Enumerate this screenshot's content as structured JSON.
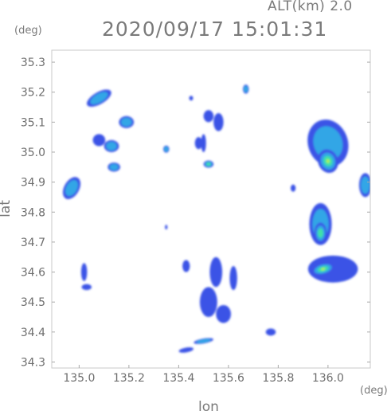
{
  "chart_data": {
    "type": "heatmap",
    "title": "2020/09/17 15:01:31",
    "altitude_label": "ALT(km) 2.0",
    "xlabel": "lon",
    "ylabel": "lat",
    "x_unit": "(deg)",
    "y_unit": "(deg)",
    "xlim": [
      134.89,
      136.17
    ],
    "ylim": [
      34.28,
      35.34
    ],
    "x_ticks": [
      "135.0",
      "135.2",
      "135.4",
      "135.6",
      "135.8",
      "136.0"
    ],
    "y_ticks": [
      "34.3",
      "34.4",
      "34.5",
      "34.6",
      "34.7",
      "34.8",
      "34.9",
      "35.0",
      "35.1",
      "35.2",
      "35.3"
    ],
    "grid": false,
    "colors": {
      "low": "#3b52e6",
      "mid": "#33a6e6",
      "high": "#40e0a8",
      "peak": "#b6f046"
    },
    "echo_cells": [
      {
        "lon": 135.08,
        "lat": 35.18,
        "rx": 0.055,
        "ry": 0.02,
        "level": 2,
        "tilt": -30
      },
      {
        "lon": 134.97,
        "lat": 34.88,
        "rx": 0.03,
        "ry": 0.04,
        "level": 2,
        "tilt": 30
      },
      {
        "lon": 135.02,
        "lat": 34.6,
        "rx": 0.012,
        "ry": 0.03,
        "level": 1,
        "tilt": 0
      },
      {
        "lon": 135.03,
        "lat": 34.55,
        "rx": 0.02,
        "ry": 0.01,
        "level": 1,
        "tilt": 0
      },
      {
        "lon": 135.08,
        "lat": 35.04,
        "rx": 0.025,
        "ry": 0.02,
        "level": 1,
        "tilt": 0
      },
      {
        "lon": 135.13,
        "lat": 35.02,
        "rx": 0.03,
        "ry": 0.02,
        "level": 2,
        "tilt": 0
      },
      {
        "lon": 135.14,
        "lat": 34.95,
        "rx": 0.025,
        "ry": 0.015,
        "level": 2,
        "tilt": 0
      },
      {
        "lon": 135.19,
        "lat": 35.1,
        "rx": 0.03,
        "ry": 0.02,
        "level": 2,
        "tilt": 0
      },
      {
        "lon": 135.35,
        "lat": 35.01,
        "rx": 0.012,
        "ry": 0.012,
        "level": 2,
        "tilt": 0
      },
      {
        "lon": 135.45,
        "lat": 35.18,
        "rx": 0.008,
        "ry": 0.008,
        "level": 1,
        "tilt": 0
      },
      {
        "lon": 135.48,
        "lat": 35.03,
        "rx": 0.015,
        "ry": 0.02,
        "level": 1,
        "tilt": 0
      },
      {
        "lon": 135.52,
        "lat": 35.12,
        "rx": 0.02,
        "ry": 0.02,
        "level": 1,
        "tilt": 0
      },
      {
        "lon": 135.56,
        "lat": 35.1,
        "rx": 0.02,
        "ry": 0.03,
        "level": 1,
        "tilt": 0
      },
      {
        "lon": 135.52,
        "lat": 34.96,
        "rx": 0.02,
        "ry": 0.012,
        "level": 3,
        "tilt": 0
      },
      {
        "lon": 135.5,
        "lat": 35.03,
        "rx": 0.01,
        "ry": 0.03,
        "level": 1,
        "tilt": 0
      },
      {
        "lon": 135.67,
        "lat": 35.21,
        "rx": 0.012,
        "ry": 0.015,
        "level": 2,
        "tilt": 0
      },
      {
        "lon": 135.43,
        "lat": 34.62,
        "rx": 0.015,
        "ry": 0.02,
        "level": 1,
        "tilt": 0
      },
      {
        "lon": 135.55,
        "lat": 34.6,
        "rx": 0.025,
        "ry": 0.05,
        "level": 1,
        "tilt": 0
      },
      {
        "lon": 135.52,
        "lat": 34.5,
        "rx": 0.035,
        "ry": 0.05,
        "level": 1,
        "tilt": 0
      },
      {
        "lon": 135.58,
        "lat": 34.46,
        "rx": 0.03,
        "ry": 0.03,
        "level": 1,
        "tilt": 0
      },
      {
        "lon": 135.62,
        "lat": 34.58,
        "rx": 0.015,
        "ry": 0.04,
        "level": 1,
        "tilt": 0
      },
      {
        "lon": 135.5,
        "lat": 34.37,
        "rx": 0.04,
        "ry": 0.008,
        "level": 2,
        "tilt": -10
      },
      {
        "lon": 135.43,
        "lat": 34.34,
        "rx": 0.03,
        "ry": 0.008,
        "level": 1,
        "tilt": -10
      },
      {
        "lon": 135.77,
        "lat": 34.4,
        "rx": 0.02,
        "ry": 0.012,
        "level": 1,
        "tilt": 0
      },
      {
        "lon": 136.0,
        "lat": 35.03,
        "rx": 0.08,
        "ry": 0.08,
        "level": 2,
        "tilt": -20
      },
      {
        "lon": 136.0,
        "lat": 34.97,
        "rx": 0.04,
        "ry": 0.04,
        "level": 4,
        "tilt": -20
      },
      {
        "lon": 135.97,
        "lat": 34.76,
        "rx": 0.045,
        "ry": 0.07,
        "level": 2,
        "tilt": 0
      },
      {
        "lon": 135.97,
        "lat": 34.73,
        "rx": 0.025,
        "ry": 0.035,
        "level": 3,
        "tilt": 0
      },
      {
        "lon": 136.02,
        "lat": 34.61,
        "rx": 0.1,
        "ry": 0.045,
        "level": 1,
        "tilt": 0
      },
      {
        "lon": 135.98,
        "lat": 34.61,
        "rx": 0.05,
        "ry": 0.02,
        "level": 4,
        "tilt": -15
      },
      {
        "lon": 136.15,
        "lat": 34.89,
        "rx": 0.025,
        "ry": 0.04,
        "level": 2,
        "tilt": 0
      },
      {
        "lon": 135.35,
        "lat": 34.75,
        "rx": 0.005,
        "ry": 0.008,
        "level": 1,
        "tilt": 0
      },
      {
        "lon": 135.86,
        "lat": 34.88,
        "rx": 0.01,
        "ry": 0.012,
        "level": 1,
        "tilt": 0
      }
    ]
  }
}
